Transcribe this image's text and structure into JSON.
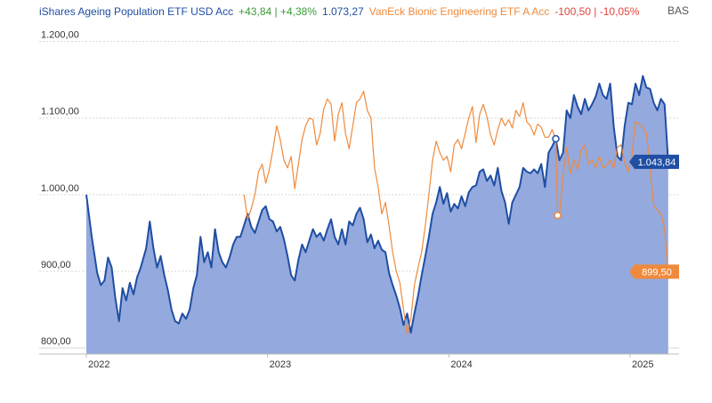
{
  "colors": {
    "ishares": "#1f4ea3",
    "ishares_fill": "#94a9dd",
    "vaneck": "#ef8a3c",
    "positive": "#3a9a3a",
    "negative": "#e0443e",
    "grid": "#d6d6d6",
    "axis_text": "#333333"
  },
  "legend": {
    "ishares_name": "iShares Ageing Population ETF USD Acc",
    "ishares_change": "+43,84 | +4,38%",
    "ishares_value": "1.073,27",
    "vaneck_name": "VanEck Bionic Engineering ETF A Acc",
    "vaneck_change": "-100,50 | -10,05%",
    "right_label": "BAS"
  },
  "chart_data": {
    "type": "area",
    "title": "",
    "ylim": [
      792,
      1210
    ],
    "y_ticks": [
      {
        "value": 1200,
        "label": "1.200,00"
      },
      {
        "value": 1100,
        "label": "1.100,00"
      },
      {
        "value": 1000,
        "label": "1.000,00"
      },
      {
        "value": 900,
        "label": "900,00"
      },
      {
        "value": 800,
        "label": "800,00"
      }
    ],
    "xlim": [
      2022.0,
      2025.27
    ],
    "x_ticks": [
      {
        "value": 2022.0,
        "label": "2022"
      },
      {
        "value": 2023.0,
        "label": "2023"
      },
      {
        "value": 2024.0,
        "label": "2024"
      },
      {
        "value": 2025.0,
        "label": "2025"
      }
    ],
    "series": [
      {
        "name": "iShares Ageing Population ETF USD Acc",
        "style": "area",
        "last_label": "1.043,84",
        "points": [
          [
            2022.0,
            1000
          ],
          [
            2022.03,
            945
          ],
          [
            2022.06,
            898
          ],
          [
            2022.08,
            882
          ],
          [
            2022.1,
            888
          ],
          [
            2022.12,
            918
          ],
          [
            2022.14,
            905
          ],
          [
            2022.16,
            865
          ],
          [
            2022.18,
            835
          ],
          [
            2022.2,
            878
          ],
          [
            2022.22,
            862
          ],
          [
            2022.24,
            885
          ],
          [
            2022.26,
            870
          ],
          [
            2022.28,
            892
          ],
          [
            2022.3,
            905
          ],
          [
            2022.33,
            930
          ],
          [
            2022.35,
            965
          ],
          [
            2022.37,
            930
          ],
          [
            2022.39,
            905
          ],
          [
            2022.41,
            920
          ],
          [
            2022.43,
            895
          ],
          [
            2022.45,
            875
          ],
          [
            2022.47,
            850
          ],
          [
            2022.49,
            835
          ],
          [
            2022.51,
            832
          ],
          [
            2022.53,
            845
          ],
          [
            2022.55,
            838
          ],
          [
            2022.57,
            850
          ],
          [
            2022.59,
            878
          ],
          [
            2022.61,
            895
          ],
          [
            2022.63,
            945
          ],
          [
            2022.65,
            912
          ],
          [
            2022.67,
            925
          ],
          [
            2022.69,
            905
          ],
          [
            2022.71,
            955
          ],
          [
            2022.73,
            925
          ],
          [
            2022.75,
            912
          ],
          [
            2022.77,
            905
          ],
          [
            2022.79,
            918
          ],
          [
            2022.81,
            935
          ],
          [
            2022.83,
            945
          ],
          [
            2022.85,
            945
          ],
          [
            2022.87,
            960
          ],
          [
            2022.89,
            975
          ],
          [
            2022.91,
            958
          ],
          [
            2022.93,
            950
          ],
          [
            2022.95,
            965
          ],
          [
            2022.97,
            980
          ],
          [
            2022.99,
            985
          ],
          [
            2023.01,
            968
          ],
          [
            2023.03,
            965
          ],
          [
            2023.05,
            952
          ],
          [
            2023.07,
            958
          ],
          [
            2023.09,
            942
          ],
          [
            2023.11,
            920
          ],
          [
            2023.13,
            895
          ],
          [
            2023.15,
            888
          ],
          [
            2023.17,
            915
          ],
          [
            2023.19,
            935
          ],
          [
            2023.21,
            925
          ],
          [
            2023.23,
            940
          ],
          [
            2023.25,
            955
          ],
          [
            2023.27,
            945
          ],
          [
            2023.29,
            950
          ],
          [
            2023.31,
            940
          ],
          [
            2023.33,
            955
          ],
          [
            2023.35,
            968
          ],
          [
            2023.37,
            945
          ],
          [
            2023.39,
            935
          ],
          [
            2023.41,
            955
          ],
          [
            2023.43,
            935
          ],
          [
            2023.45,
            965
          ],
          [
            2023.47,
            960
          ],
          [
            2023.49,
            975
          ],
          [
            2023.51,
            983
          ],
          [
            2023.53,
            968
          ],
          [
            2023.55,
            938
          ],
          [
            2023.57,
            948
          ],
          [
            2023.59,
            930
          ],
          [
            2023.61,
            940
          ],
          [
            2023.63,
            928
          ],
          [
            2023.65,
            925
          ],
          [
            2023.67,
            898
          ],
          [
            2023.69,
            882
          ],
          [
            2023.71,
            868
          ],
          [
            2023.73,
            852
          ],
          [
            2023.75,
            830
          ],
          [
            2023.77,
            845
          ],
          [
            2023.79,
            820
          ],
          [
            2023.81,
            845
          ],
          [
            2023.83,
            868
          ],
          [
            2023.85,
            895
          ],
          [
            2023.87,
            920
          ],
          [
            2023.89,
            945
          ],
          [
            2023.91,
            975
          ],
          [
            2023.93,
            990
          ],
          [
            2023.95,
            1010
          ],
          [
            2023.97,
            988
          ],
          [
            2023.99,
            1002
          ],
          [
            2024.01,
            978
          ],
          [
            2024.03,
            988
          ],
          [
            2024.05,
            982
          ],
          [
            2024.07,
            998
          ],
          [
            2024.09,
            985
          ],
          [
            2024.11,
            1003
          ],
          [
            2024.13,
            1010
          ],
          [
            2024.15,
            1012
          ],
          [
            2024.17,
            1030
          ],
          [
            2024.19,
            1033
          ],
          [
            2024.21,
            1018
          ],
          [
            2024.23,
            1025
          ],
          [
            2024.25,
            1012
          ],
          [
            2024.27,
            1035
          ],
          [
            2024.29,
            1005
          ],
          [
            2024.31,
            990
          ],
          [
            2024.33,
            962
          ],
          [
            2024.35,
            990
          ],
          [
            2024.37,
            1000
          ],
          [
            2024.39,
            1010
          ],
          [
            2024.41,
            1035
          ],
          [
            2024.43,
            1030
          ],
          [
            2024.45,
            1028
          ],
          [
            2024.47,
            1033
          ],
          [
            2024.49,
            1028
          ],
          [
            2024.51,
            1040
          ],
          [
            2024.53,
            1010
          ],
          [
            2024.55,
            1055
          ],
          [
            2024.57,
            1063
          ],
          [
            2024.59,
            1073
          ],
          [
            2024.61,
            1045
          ],
          [
            2024.63,
            1055
          ],
          [
            2024.65,
            1110
          ],
          [
            2024.67,
            1100
          ],
          [
            2024.69,
            1130
          ],
          [
            2024.71,
            1115
          ],
          [
            2024.73,
            1105
          ],
          [
            2024.75,
            1125
          ],
          [
            2024.77,
            1110
          ],
          [
            2024.79,
            1118
          ],
          [
            2024.81,
            1128
          ],
          [
            2024.83,
            1145
          ],
          [
            2024.85,
            1130
          ],
          [
            2024.87,
            1125
          ],
          [
            2024.89,
            1145
          ],
          [
            2024.91,
            1088
          ],
          [
            2024.93,
            1050
          ],
          [
            2024.95,
            1045
          ],
          [
            2024.97,
            1090
          ],
          [
            2024.99,
            1120
          ],
          [
            2025.01,
            1118
          ],
          [
            2025.03,
            1145
          ],
          [
            2025.05,
            1130
          ],
          [
            2025.07,
            1155
          ],
          [
            2025.09,
            1140
          ],
          [
            2025.11,
            1138
          ],
          [
            2025.13,
            1120
          ],
          [
            2025.15,
            1110
          ],
          [
            2025.17,
            1125
          ],
          [
            2025.19,
            1118
          ],
          [
            2025.21,
            1043
          ]
        ]
      },
      {
        "name": "VanEck Bionic Engineering ETF A Acc",
        "style": "line",
        "last_label": "899,50",
        "points": [
          [
            2022.87,
            1000
          ],
          [
            2022.89,
            968
          ],
          [
            2022.91,
            982
          ],
          [
            2022.93,
            1000
          ],
          [
            2022.95,
            1030
          ],
          [
            2022.97,
            1040
          ],
          [
            2022.99,
            1015
          ],
          [
            2023.01,
            1033
          ],
          [
            2023.03,
            1060
          ],
          [
            2023.05,
            1090
          ],
          [
            2023.07,
            1072
          ],
          [
            2023.09,
            1045
          ],
          [
            2023.11,
            1035
          ],
          [
            2023.13,
            1050
          ],
          [
            2023.15,
            1008
          ],
          [
            2023.17,
            1040
          ],
          [
            2023.19,
            1072
          ],
          [
            2023.21,
            1090
          ],
          [
            2023.23,
            1100
          ],
          [
            2023.25,
            1098
          ],
          [
            2023.27,
            1065
          ],
          [
            2023.29,
            1080
          ],
          [
            2023.31,
            1112
          ],
          [
            2023.33,
            1125
          ],
          [
            2023.35,
            1118
          ],
          [
            2023.37,
            1070
          ],
          [
            2023.39,
            1105
          ],
          [
            2023.41,
            1120
          ],
          [
            2023.43,
            1080
          ],
          [
            2023.45,
            1060
          ],
          [
            2023.47,
            1090
          ],
          [
            2023.49,
            1120
          ],
          [
            2023.51,
            1125
          ],
          [
            2023.53,
            1135
          ],
          [
            2023.55,
            1110
          ],
          [
            2023.57,
            1100
          ],
          [
            2023.59,
            1035
          ],
          [
            2023.61,
            1010
          ],
          [
            2023.63,
            975
          ],
          [
            2023.65,
            990
          ],
          [
            2023.67,
            960
          ],
          [
            2023.69,
            925
          ],
          [
            2023.71,
            900
          ],
          [
            2023.73,
            885
          ],
          [
            2023.75,
            850
          ],
          [
            2023.77,
            818
          ],
          [
            2023.79,
            838
          ],
          [
            2023.81,
            882
          ],
          [
            2023.83,
            905
          ],
          [
            2023.85,
            925
          ],
          [
            2023.87,
            960
          ],
          [
            2023.89,
            1000
          ],
          [
            2023.91,
            1045
          ],
          [
            2023.93,
            1070
          ],
          [
            2023.95,
            1055
          ],
          [
            2023.97,
            1045
          ],
          [
            2023.99,
            1050
          ],
          [
            2024.01,
            1030
          ],
          [
            2024.03,
            1065
          ],
          [
            2024.05,
            1072
          ],
          [
            2024.07,
            1060
          ],
          [
            2024.09,
            1080
          ],
          [
            2024.11,
            1100
          ],
          [
            2024.13,
            1115
          ],
          [
            2024.15,
            1068
          ],
          [
            2024.17,
            1105
          ],
          [
            2024.19,
            1118
          ],
          [
            2024.21,
            1102
          ],
          [
            2024.23,
            1078
          ],
          [
            2024.25,
            1065
          ],
          [
            2024.27,
            1085
          ],
          [
            2024.29,
            1100
          ],
          [
            2024.31,
            1090
          ],
          [
            2024.33,
            1098
          ],
          [
            2024.35,
            1087
          ],
          [
            2024.37,
            1110
          ],
          [
            2024.39,
            1102
          ],
          [
            2024.41,
            1120
          ],
          [
            2024.43,
            1095
          ],
          [
            2024.45,
            1090
          ],
          [
            2024.47,
            1078
          ],
          [
            2024.49,
            1092
          ],
          [
            2024.51,
            1088
          ],
          [
            2024.53,
            1075
          ],
          [
            2024.55,
            1075
          ],
          [
            2024.57,
            1085
          ],
          [
            2024.59,
            1072
          ],
          [
            2024.6,
            973
          ],
          [
            2024.61,
            975
          ],
          [
            2024.63,
            1025
          ],
          [
            2024.65,
            1062
          ],
          [
            2024.67,
            1028
          ],
          [
            2024.69,
            1045
          ],
          [
            2024.71,
            1033
          ],
          [
            2024.73,
            1058
          ],
          [
            2024.75,
            1065
          ],
          [
            2024.77,
            1040
          ],
          [
            2024.79,
            1045
          ],
          [
            2024.81,
            1035
          ],
          [
            2024.83,
            1050
          ],
          [
            2024.85,
            1035
          ],
          [
            2024.87,
            1038
          ],
          [
            2024.89,
            1045
          ],
          [
            2024.91,
            1035
          ],
          [
            2024.93,
            1062
          ],
          [
            2024.95,
            1065
          ],
          [
            2024.97,
            1042
          ],
          [
            2024.99,
            1030
          ],
          [
            2025.01,
            1050
          ],
          [
            2025.03,
            1095
          ],
          [
            2025.05,
            1092
          ],
          [
            2025.07,
            1088
          ],
          [
            2025.09,
            1080
          ],
          [
            2025.11,
            1035
          ],
          [
            2025.13,
            985
          ],
          [
            2025.15,
            980
          ],
          [
            2025.17,
            975
          ],
          [
            2025.19,
            955
          ],
          [
            2025.21,
            899.5
          ]
        ]
      }
    ],
    "markers": [
      {
        "series": "iShares Ageing Population ETF USD Acc",
        "x": 2024.59,
        "y": 1073
      },
      {
        "series": "VanEck Bionic Engineering ETF A Acc",
        "x": 2024.6,
        "y": 973
      }
    ]
  }
}
